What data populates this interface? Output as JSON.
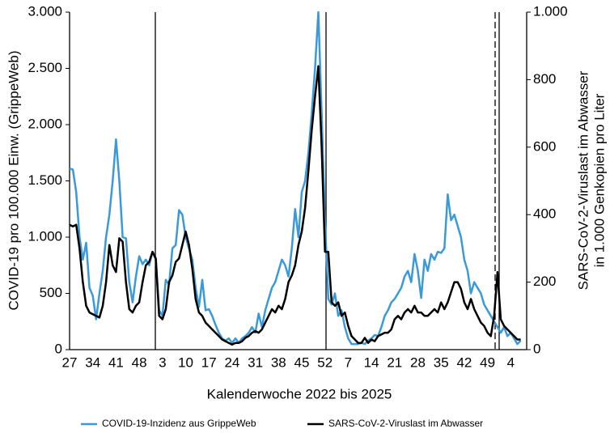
{
  "chart_data": {
    "type": "line",
    "x_label": "Kalenderwoche 2022 bis 2025",
    "y_label": "COVID-19 pro 100.000 Einw. (GrippeWeb)",
    "y2_label": [
      "SARS-CoV-2-Viruslast im Abwasser",
      "in 1.000 Genkopien pro Liter"
    ],
    "categories": [
      "27",
      null,
      null,
      null,
      null,
      null,
      null,
      "34",
      null,
      null,
      null,
      null,
      null,
      null,
      "41",
      null,
      null,
      null,
      null,
      null,
      null,
      "48",
      null,
      null,
      null,
      null,
      null,
      null,
      "3",
      null,
      null,
      null,
      null,
      null,
      null,
      "10",
      null,
      null,
      null,
      null,
      null,
      null,
      "17",
      null,
      null,
      null,
      null,
      null,
      null,
      "24",
      null,
      null,
      null,
      null,
      null,
      null,
      "31",
      null,
      null,
      null,
      null,
      null,
      null,
      "38",
      null,
      null,
      null,
      null,
      null,
      null,
      "45",
      null,
      null,
      null,
      null,
      null,
      null,
      "52",
      null,
      null,
      null,
      null,
      null,
      null,
      "7",
      null,
      null,
      null,
      null,
      null,
      null,
      "14",
      null,
      null,
      null,
      null,
      null,
      null,
      "21",
      null,
      null,
      null,
      null,
      null,
      null,
      "28",
      null,
      null,
      null,
      null,
      null,
      null,
      "35",
      null,
      null,
      null,
      null,
      null,
      null,
      "42",
      null,
      null,
      null,
      null,
      null,
      null,
      "49",
      null,
      null,
      null,
      null,
      null,
      null,
      "4",
      null,
      null,
      null
    ],
    "series": [
      {
        "name": "COVID-19-Inzidenz aus GrippeWeb",
        "color": "#3a9ad9",
        "axis": "y",
        "values": [
          1610,
          1600,
          1400,
          1000,
          800,
          950,
          550,
          480,
          270,
          500,
          700,
          1000,
          1200,
          1500,
          1870,
          1500,
          1000,
          990,
          600,
          420,
          650,
          830,
          760,
          800,
          750,
          870,
          800,
          350,
          300,
          620,
          580,
          900,
          930,
          1240,
          1200,
          1000,
          900,
          800,
          550,
          380,
          620,
          350,
          360,
          300,
          220,
          150,
          100,
          80,
          100,
          60,
          100,
          60,
          100,
          120,
          150,
          200,
          150,
          320,
          200,
          350,
          450,
          550,
          600,
          700,
          800,
          750,
          650,
          900,
          1250,
          1000,
          1400,
          1500,
          1750,
          2100,
          2500,
          3000,
          2100,
          1150,
          450,
          400,
          500,
          300,
          350,
          200,
          100,
          50,
          50,
          50,
          60,
          50,
          80,
          100,
          130,
          120,
          200,
          300,
          350,
          420,
          450,
          500,
          550,
          650,
          700,
          600,
          850,
          700,
          460,
          800,
          700,
          850,
          800,
          870,
          860,
          900,
          1380,
          1150,
          1200,
          1100,
          1000,
          800,
          700,
          500,
          600,
          550,
          500,
          400,
          350,
          300,
          250,
          200,
          150,
          200,
          120,
          150,
          100,
          50,
          80
        ]
      },
      {
        "name": "SARS-CoV-2-Viruslast im Abwasser",
        "color": "#000000",
        "axis": "y2",
        "values": [
          370,
          365,
          370,
          300,
          200,
          130,
          110,
          105,
          100,
          95,
          130,
          200,
          310,
          250,
          230,
          330,
          320,
          200,
          120,
          110,
          130,
          140,
          200,
          250,
          260,
          290,
          270,
          100,
          90,
          120,
          200,
          220,
          260,
          270,
          310,
          350,
          310,
          240,
          150,
          110,
          100,
          80,
          70,
          60,
          50,
          40,
          30,
          25,
          20,
          15,
          20,
          20,
          25,
          35,
          40,
          50,
          55,
          50,
          60,
          80,
          100,
          120,
          110,
          130,
          120,
          150,
          200,
          220,
          250,
          310,
          350,
          420,
          530,
          650,
          750,
          840,
          600,
          290,
          290,
          140,
          130,
          140,
          100,
          110,
          70,
          40,
          30,
          20,
          20,
          35,
          20,
          30,
          25,
          40,
          45,
          50,
          50,
          60,
          90,
          100,
          90,
          110,
          120,
          110,
          130,
          110,
          110,
          100,
          100,
          110,
          120,
          110,
          140,
          120,
          140,
          170,
          200,
          200,
          180,
          140,
          120,
          150,
          120,
          100,
          80,
          70,
          50,
          40,
          100,
          230,
          90,
          70,
          60,
          50,
          40,
          30,
          30
        ]
      }
    ],
    "ylim": [
      0,
      3000
    ],
    "yticks": [
      0,
      500,
      {
        "value": 1000,
        "label": "1.000"
      },
      {
        "value": 1500,
        "label": "1.500"
      },
      {
        "value": 2000,
        "label": "2.000"
      },
      {
        "value": 2500,
        "label": "2.500"
      },
      {
        "value": 3000,
        "label": "3.000"
      }
    ],
    "y2lim": [
      0,
      1000
    ],
    "y2ticks": [
      0,
      200,
      400,
      600,
      800,
      {
        "value": 1000,
        "label": "1.000"
      }
    ],
    "grid": false,
    "legend": "bottom"
  }
}
